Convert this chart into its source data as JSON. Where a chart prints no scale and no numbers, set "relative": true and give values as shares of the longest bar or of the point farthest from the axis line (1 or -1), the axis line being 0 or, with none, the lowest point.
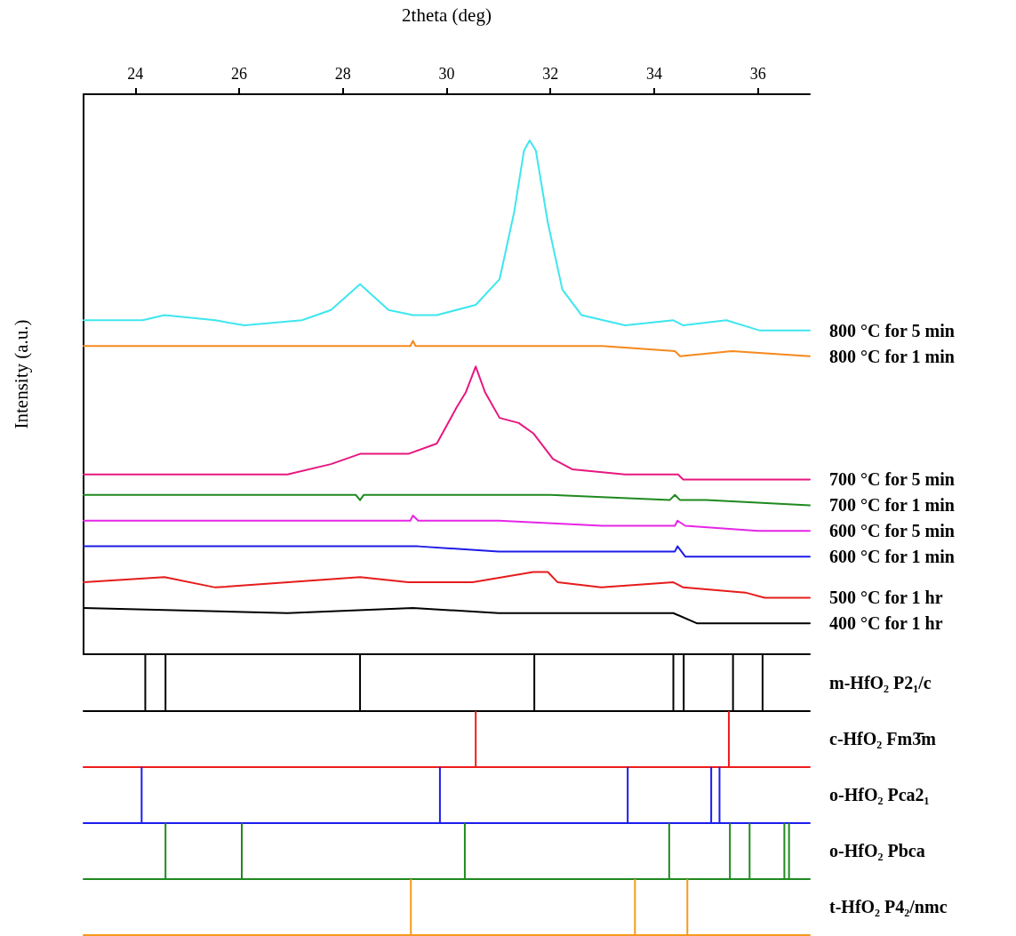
{
  "chart_data": [
    {
      "type": "line",
      "xlabel": "2theta (deg)",
      "ylabel": "Intensity (a.u.)",
      "relative": true,
      "xlim": [
        23,
        37
      ],
      "tick_labels": "x",
      "xticks": [
        24,
        26,
        28,
        30,
        32,
        34,
        36
      ],
      "series": [
        {
          "name": "800 °C for 5 min",
          "color": "#3ee6ee",
          "x": [
            23,
            24.14,
            24.56,
            25.54,
            26.1,
            27.21,
            27.77,
            28.33,
            28.88,
            29.35,
            29.81,
            30.56,
            31.02,
            31.3,
            31.49,
            31.6,
            31.72,
            31.95,
            32.23,
            32.6,
            33.44,
            34.37,
            34.56,
            35.39,
            36.04,
            37
          ],
          "values": [
            0.65,
            0.65,
            0.66,
            0.65,
            0.64,
            0.65,
            0.67,
            0.72,
            0.67,
            0.66,
            0.66,
            0.68,
            0.73,
            0.86,
            0.98,
            1,
            0.98,
            0.84,
            0.71,
            0.66,
            0.64,
            0.65,
            0.64,
            0.65,
            0.63,
            0.63
          ]
        },
        {
          "name": "800 °C for 1 min",
          "color": "#f5891e",
          "x": [
            23,
            24.5,
            26,
            28,
            29.3,
            29.35,
            29.4,
            31,
            33,
            34.4,
            34.5,
            35.5,
            37
          ],
          "values": [
            0.6,
            0.6,
            0.6,
            0.6,
            0.6,
            0.61,
            0.6,
            0.6,
            0.6,
            0.59,
            0.58,
            0.59,
            0.58
          ]
        },
        {
          "name": "700 °C for 5 min",
          "color": "#e8177f",
          "x": [
            23,
            25.54,
            26.93,
            27.77,
            28.33,
            29.26,
            29.81,
            30.19,
            30.37,
            30.56,
            30.74,
            31.02,
            31.39,
            31.67,
            32.05,
            32.42,
            33.44,
            34.37,
            34.46,
            34.56,
            35.76,
            37
          ],
          "values": [
            0.35,
            0.35,
            0.35,
            0.37,
            0.39,
            0.39,
            0.41,
            0.48,
            0.51,
            0.56,
            0.51,
            0.46,
            0.45,
            0.43,
            0.38,
            0.36,
            0.35,
            0.35,
            0.35,
            0.34,
            0.34,
            0.34
          ]
        },
        {
          "name": "700 °C for 1 min",
          "color": "#1f8a1f",
          "x": [
            23,
            25,
            28.25,
            28.33,
            28.4,
            30,
            32,
            34.3,
            34.4,
            34.5,
            35,
            37
          ],
          "values": [
            0.31,
            0.31,
            0.31,
            0.3,
            0.31,
            0.31,
            0.31,
            0.3,
            0.31,
            0.3,
            0.3,
            0.29
          ]
        },
        {
          "name": "600 °C for 5 min",
          "color": "#e626e6",
          "x": [
            23,
            26,
            29.3,
            29.35,
            29.45,
            31,
            33,
            34.4,
            34.45,
            34.6,
            36,
            37
          ],
          "values": [
            0.26,
            0.26,
            0.26,
            0.27,
            0.26,
            0.26,
            0.25,
            0.25,
            0.26,
            0.25,
            0.24,
            0.24
          ]
        },
        {
          "name": "600 °C for 1 min",
          "color": "#1c1ce6",
          "x": [
            23,
            24.3,
            26,
            29.3,
            29.35,
            29.45,
            31,
            33,
            34.4,
            34.45,
            34.6,
            36,
            37
          ],
          "values": [
            0.21,
            0.21,
            0.21,
            0.21,
            0.21,
            0.21,
            0.2,
            0.2,
            0.2,
            0.21,
            0.19,
            0.19,
            0.19
          ]
        },
        {
          "name": "500 °C for 1 hr",
          "color": "#e61c1c",
          "x": [
            23,
            24.56,
            25.54,
            28.33,
            29.26,
            30.5,
            31.67,
            31.95,
            32.14,
            32.98,
            34.37,
            34.56,
            35.76,
            36.13,
            37
          ],
          "values": [
            0.14,
            0.15,
            0.13,
            0.15,
            0.14,
            0.14,
            0.16,
            0.16,
            0.14,
            0.13,
            0.14,
            0.13,
            0.12,
            0.11,
            0.11
          ]
        },
        {
          "name": "400 °C for 1 hr",
          "color": "#000000",
          "x": [
            23,
            26.93,
            29.35,
            31,
            33,
            34.37,
            34.83,
            37
          ],
          "values": [
            0.09,
            0.08,
            0.09,
            0.08,
            0.08,
            0.08,
            0.06,
            0.06
          ]
        }
      ]
    },
    {
      "type": "bar",
      "relative": true,
      "xlim": [
        23,
        37
      ],
      "tick_labels": false,
      "series": [
        {
          "name": "m-HfO₂ P2₁/c",
          "color": "#000000",
          "x": [
            24.19,
            24.58,
            28.33,
            31.69,
            34.37,
            34.57,
            35.52,
            36.09
          ],
          "values": [
            1,
            1,
            1,
            1,
            1,
            1,
            1,
            1
          ]
        }
      ]
    },
    {
      "type": "bar",
      "relative": true,
      "xlim": [
        23,
        37
      ],
      "tick_labels": false,
      "series": [
        {
          "name": "c-HfO₂ Fm3̄m",
          "color": "#ee1c1c",
          "x": [
            30.56,
            35.44
          ],
          "values": [
            1,
            1
          ]
        }
      ]
    },
    {
      "type": "bar",
      "relative": true,
      "xlim": [
        23,
        37
      ],
      "tick_labels": false,
      "series": [
        {
          "name": "o-HfO₂ Pca2₁",
          "color": "#1c1cee",
          "x": [
            24.12,
            29.87,
            33.49,
            35.1,
            35.26
          ],
          "values": [
            1,
            1,
            1,
            1,
            1
          ]
        }
      ]
    },
    {
      "type": "bar",
      "relative": true,
      "xlim": [
        23,
        37
      ],
      "tick_labels": false,
      "series": [
        {
          "name": "o-HfO₂ Pbca",
          "color": "#1f8a1f",
          "x": [
            24.58,
            26.05,
            30.35,
            34.29,
            35.46,
            35.84,
            36.51,
            36.6
          ],
          "values": [
            1,
            1,
            1,
            1,
            1,
            1,
            1,
            1
          ]
        }
      ]
    },
    {
      "type": "bar",
      "relative": true,
      "xlim": [
        23,
        37
      ],
      "tick_labels": false,
      "series": [
        {
          "name": "t-HfO₂ P4₂/nmc",
          "color": "#f59a1e",
          "x": [
            29.31,
            33.63,
            34.64
          ],
          "values": [
            1,
            1,
            1
          ]
        }
      ]
    }
  ]
}
